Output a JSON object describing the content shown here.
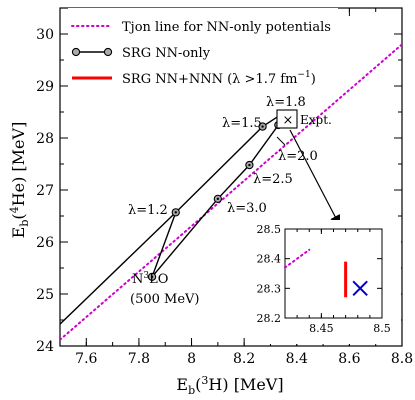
{
  "chart_data": {
    "type": "line",
    "xlabel": "E",
    "xlabel_sub": "b",
    "xlabel_paren": "(",
    "xlabel_sup": "3",
    "xlabel_tail": "H) [MeV]",
    "ylabel": "E",
    "ylabel_sub": "b",
    "ylabel_paren": "(",
    "ylabel_sup": "4",
    "ylabel_tail": "He) [MeV]",
    "xlim": [
      7.5,
      8.8
    ],
    "ylim": [
      24,
      30.5
    ],
    "xticks": [
      "7.6",
      "7.8",
      "8",
      "8.2",
      "8.4",
      "8.6",
      "8.8"
    ],
    "yticks": [
      "24",
      "25",
      "26",
      "27",
      "28",
      "29",
      "30"
    ],
    "grid": false,
    "legend_position": "top-left",
    "legend": [
      {
        "label": "Tjon line for NN-only potentials",
        "color": "#cc00cc",
        "style": "dotted"
      },
      {
        "label": "SRG NN-only",
        "color": "#000000",
        "style": "solid-with-circles"
      },
      {
        "label_pre": "SRG NN+NNN (λ >1.7 fm",
        "label_sup": "−1",
        "label_post": ")",
        "color": "#ff0000",
        "style": "solid"
      }
    ],
    "series": [
      {
        "name": "SRG NN-only (upper branch)",
        "points": [
          [
            7.85,
            25.33
          ],
          [
            7.94,
            26.57
          ],
          [
            8.27,
            28.22
          ],
          [
            8.34,
            28.45
          ]
        ]
      },
      {
        "name": "SRG NN-only (lower branch)",
        "points": [
          [
            7.85,
            25.33
          ],
          [
            8.1,
            26.83
          ],
          [
            8.22,
            27.48
          ],
          [
            8.33,
            28.25
          ],
          [
            8.34,
            28.45
          ]
        ]
      }
    ],
    "tjon_line": {
      "x": [
        7.5,
        8.8
      ],
      "y": [
        24.12,
        29.8
      ]
    },
    "experiment": {
      "x": 8.48,
      "y": 28.3,
      "marker": "×",
      "color": "#0000cc",
      "label": "Expt."
    },
    "annotations": [
      {
        "text": "λ=1.8",
        "x": 8.34,
        "y": 28.45
      },
      {
        "text": "λ=1.5",
        "x": 8.27,
        "y": 28.22
      },
      {
        "text": "λ=2.0",
        "x": 8.33,
        "y": 28.25
      },
      {
        "text": "λ=2.5",
        "x": 8.22,
        "y": 27.48
      },
      {
        "text": "λ=1.2",
        "x": 7.94,
        "y": 26.57
      },
      {
        "text": "λ=3.0",
        "x": 8.1,
        "y": 26.83
      },
      {
        "text_pre": "N",
        "text_sup": "3",
        "text_post": "LO",
        "x": 7.85,
        "y": 25.33
      },
      {
        "text": "(500 MeV)",
        "x": 7.85,
        "y": 25.33
      }
    ],
    "inset": {
      "xlim": [
        8.42,
        8.5
      ],
      "ylim": [
        28.2,
        28.5
      ],
      "xticks": [
        "8.45",
        "8.5"
      ],
      "yticks": [
        "28.2",
        "28.3",
        "28.4",
        "28.5"
      ],
      "nnn_band": {
        "x": 8.47,
        "y": [
          28.27,
          28.39
        ],
        "color": "#ff0000"
      },
      "experiment": {
        "x": 8.482,
        "y": 28.3
      },
      "tjon_segment": {
        "x": [
          8.42,
          8.44
        ],
        "y": [
          28.37,
          28.43
        ]
      }
    }
  }
}
